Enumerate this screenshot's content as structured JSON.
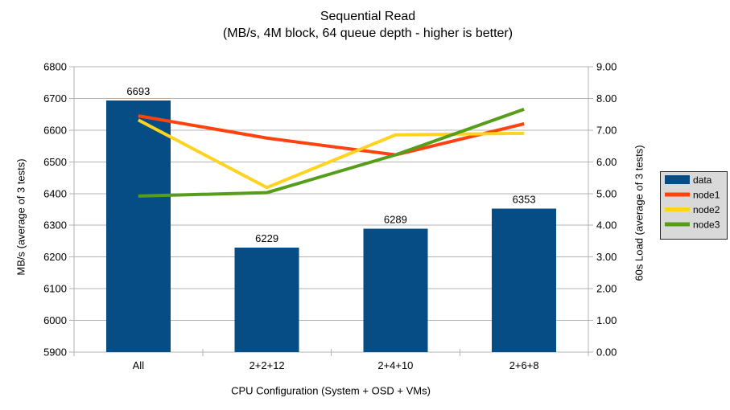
{
  "chart": {
    "title": "Sequential Read",
    "subtitle": "(MB/s, 4M block, 64 queue depth - higher is better)"
  },
  "chart_data": {
    "type": "combo-bar-line",
    "title": "Sequential Read",
    "subtitle": "(MB/s, 4M block, 64 queue depth - higher is better)",
    "categories": [
      "All",
      "2+2+12",
      "2+4+10",
      "2+6+8"
    ],
    "x_axis": {
      "label": "CPU Configuration (System + OSD + VMs)"
    },
    "left_axis": {
      "label": "MB/s (average of 3 tests)",
      "min": 5900,
      "max": 6800,
      "step": 100
    },
    "right_axis": {
      "label": "60s Load (average of 3 tests)",
      "min": 0,
      "max": 9,
      "step": 1,
      "decimals": 2
    },
    "bar_series": {
      "name": "data",
      "axis": "left",
      "color": "#064d85",
      "values": [
        6693,
        6229,
        6289,
        6353
      ]
    },
    "line_series": [
      {
        "name": "node1",
        "axis": "right",
        "color": "#ff420e",
        "values": [
          7.45,
          6.75,
          6.22,
          7.2
        ]
      },
      {
        "name": "node2",
        "axis": "right",
        "color": "#ffd320",
        "values": [
          7.32,
          5.19,
          6.85,
          6.9
        ]
      },
      {
        "name": "node3",
        "axis": "right",
        "color": "#579d1c",
        "values": [
          4.92,
          5.03,
          6.22,
          7.66
        ]
      }
    ],
    "legend": {
      "position": "right",
      "background": "#d9d9d9",
      "border": "#262626",
      "entries": [
        {
          "label": "data",
          "type": "bar"
        },
        {
          "label": "node1",
          "type": "line"
        },
        {
          "label": "node2",
          "type": "line"
        },
        {
          "label": "node3",
          "type": "line"
        }
      ]
    },
    "grid": "horizontal",
    "grid_color": "#b3b3b3"
  }
}
